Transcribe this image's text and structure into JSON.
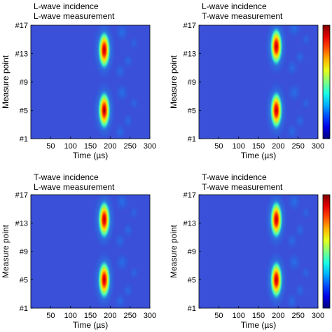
{
  "chart_data": [
    {
      "type": "heatmap",
      "title_lines": [
        "L-wave incidence",
        "L-wave measurement"
      ],
      "xlabel": "Time (µs)",
      "ylabel": "Measure point",
      "x_ticks": [
        50,
        100,
        150,
        200,
        250,
        300
      ],
      "y_ticks": [
        "#1",
        "#5",
        "#9",
        "#13",
        "#17"
      ],
      "xlim": [
        0,
        300
      ],
      "ylim": [
        1,
        17
      ],
      "colorbar": false,
      "hotspots": [
        {
          "time": 185,
          "point": 13.5,
          "intensity": 0.95
        },
        {
          "time": 185,
          "point": 5,
          "intensity": 1.0
        }
      ]
    },
    {
      "type": "heatmap",
      "title_lines": [
        "L-wave incidence",
        "T-wave measurement"
      ],
      "xlabel": "Time (µs)",
      "ylabel": "Measure point",
      "x_ticks": [
        50,
        100,
        150,
        200,
        250,
        300
      ],
      "y_ticks": [
        "#1",
        "#5",
        "#9",
        "#13",
        "#17"
      ],
      "xlim": [
        0,
        300
      ],
      "ylim": [
        1,
        17
      ],
      "colorbar": true,
      "hotspots": [
        {
          "time": 195,
          "point": 14,
          "intensity": 0.95
        },
        {
          "time": 195,
          "point": 5,
          "intensity": 0.95
        }
      ]
    },
    {
      "type": "heatmap",
      "title_lines": [
        "T-wave incidence",
        "L-wave measurement"
      ],
      "xlabel": "Time (µs)",
      "ylabel": "Measure point",
      "x_ticks": [
        50,
        100,
        150,
        200,
        250,
        300
      ],
      "y_ticks": [
        "#1",
        "#5",
        "#9",
        "#13",
        "#17"
      ],
      "xlim": [
        0,
        300
      ],
      "ylim": [
        1,
        17
      ],
      "colorbar": false,
      "hotspots": [
        {
          "time": 185,
          "point": 13.5,
          "intensity": 0.95
        },
        {
          "time": 185,
          "point": 5,
          "intensity": 0.95
        }
      ]
    },
    {
      "type": "heatmap",
      "title_lines": [
        "T-wave incidence",
        "T-wave measurement"
      ],
      "xlabel": "Time (µs)",
      "ylabel": "Measure point",
      "x_ticks": [
        50,
        100,
        150,
        200,
        250,
        300
      ],
      "y_ticks": [
        "#1",
        "#5",
        "#9",
        "#13",
        "#17"
      ],
      "xlim": [
        0,
        300
      ],
      "ylim": [
        1,
        17
      ],
      "colorbar": true,
      "hotspots": [
        {
          "time": 195,
          "point": 13.5,
          "intensity": 0.95
        },
        {
          "time": 195,
          "point": 5,
          "intensity": 0.95
        }
      ]
    }
  ],
  "colors": {
    "background_field": "#3a50d8",
    "colormap": "jet"
  }
}
